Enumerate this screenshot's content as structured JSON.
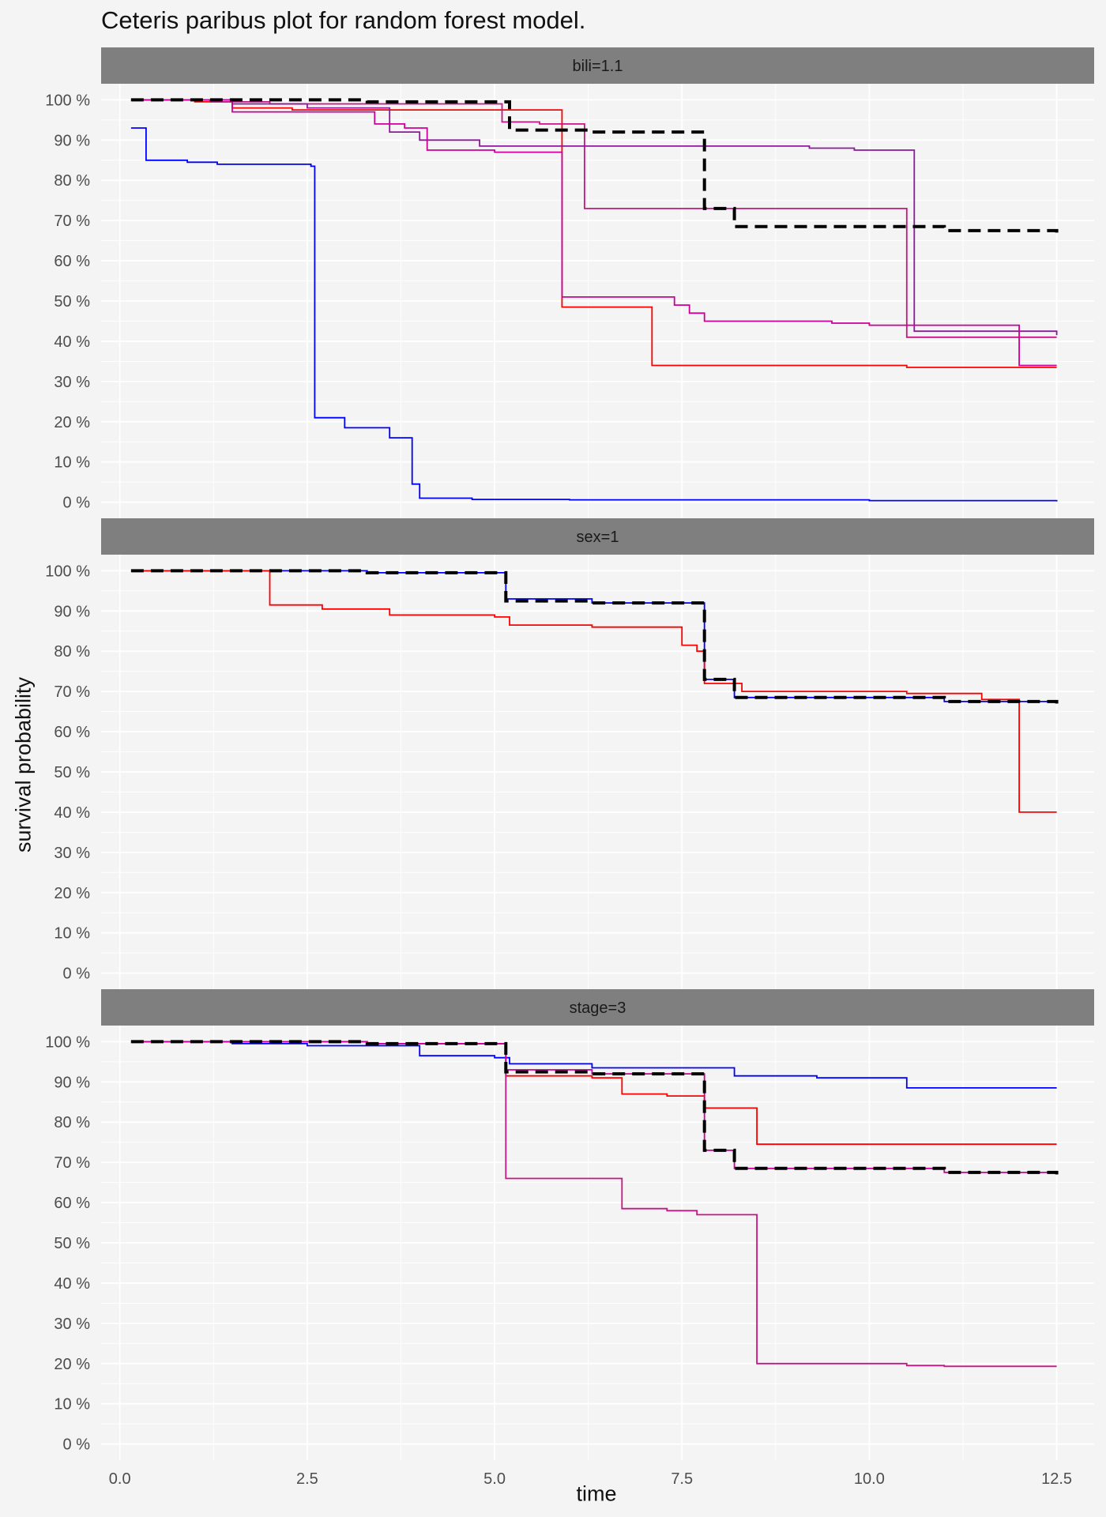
{
  "chart_data": {
    "type": "line",
    "title": "Ceteris paribus plot for random forest model.",
    "xlabel": "time",
    "ylabel": "survival probability",
    "xlim": [
      -0.25,
      13.0
    ],
    "ylim": [
      -4,
      104
    ],
    "x_ticks": [
      "0.0",
      "2.5",
      "5.0",
      "7.5",
      "10.0",
      "12.5"
    ],
    "x_tick_values": [
      0,
      2.5,
      5,
      7.5,
      10,
      12.5
    ],
    "y_ticks": [
      "0 %",
      "10 %",
      "20 %",
      "30 %",
      "40 %",
      "50 %",
      "60 %",
      "70 %",
      "80 %",
      "90 %",
      "100 %"
    ],
    "y_tick_values": [
      0,
      10,
      20,
      30,
      40,
      50,
      60,
      70,
      80,
      90,
      100
    ],
    "step": "post",
    "grid": true,
    "colors": {
      "background": "#f4f4f4",
      "strip": "#7f7f7f",
      "grid": "#ffffff",
      "observation": "#000000"
    },
    "panels": [
      {
        "strip_label": "bili=1.1",
        "series": [
          {
            "color": "#0000ff",
            "dashed": false,
            "x": [
              0.15,
              0.35,
              0.9,
              1.3,
              2.55,
              2.6,
              3.0,
              3.6,
              3.9,
              4.0,
              4.7,
              6.0,
              10.0,
              12.5
            ],
            "y": [
              93,
              85,
              84.5,
              84,
              83.5,
              21,
              18.5,
              16,
              4.5,
              1,
              0.7,
              0.6,
              0.4,
              0.2
            ]
          },
          {
            "color": "#ff0000",
            "dashed": false,
            "x": [
              0.15,
              1.0,
              1.5,
              2.3,
              5.0,
              5.9,
              7.1,
              10.5,
              12.5
            ],
            "y": [
              100,
              99.5,
              98,
              97.5,
              97.5,
              48.5,
              34,
              33.5,
              33.5
            ]
          },
          {
            "color": "#c71585",
            "dashed": false,
            "x": [
              0.15,
              1.2,
              2.0,
              5.1,
              5.6,
              6.2,
              10.5,
              12.5
            ],
            "y": [
              100,
              99.5,
              99,
              94.5,
              94,
              73,
              41,
              41
            ]
          },
          {
            "color": "#8b1a9a",
            "dashed": false,
            "x": [
              0.15,
              1.5,
              2.5,
              3.6,
              4.0,
              4.8,
              9.2,
              9.8,
              10.6,
              12.5
            ],
            "y": [
              100,
              99,
              98,
              92,
              90,
              88.5,
              88,
              87.5,
              42.5,
              41.5
            ]
          },
          {
            "color": "#cc0099",
            "dashed": false,
            "x": [
              0.15,
              1.5,
              3.4,
              3.8,
              4.1,
              5.0,
              5.9,
              7.4,
              7.6,
              7.8,
              9.5,
              10.0,
              12.0,
              12.5
            ],
            "y": [
              100,
              97,
              94,
              93,
              87.5,
              87,
              51,
              49,
              47,
              45,
              44.5,
              44,
              34,
              34
            ]
          },
          {
            "color": "#000000",
            "dashed": true,
            "x": [
              0.15,
              1.0,
              3.3,
              5.0,
              5.2,
              6.3,
              7.8,
              8.2,
              10.0,
              11.0,
              12.5
            ],
            "y": [
              100,
              100,
              99.5,
              99.5,
              92.5,
              92,
              73,
              68.5,
              68.5,
              67.5,
              67
            ]
          }
        ]
      },
      {
        "strip_label": "sex=1",
        "series": [
          {
            "color": "#0000ff",
            "dashed": false,
            "x": [
              0.15,
              3.3,
              5.0,
              5.15,
              6.3,
              7.8,
              8.2,
              10.0,
              11.0,
              12.5
            ],
            "y": [
              100,
              99.5,
              99.5,
              93,
              92,
              73,
              68.5,
              68.5,
              67.5,
              67
            ]
          },
          {
            "color": "#ff0000",
            "dashed": false,
            "x": [
              0.15,
              2.0,
              2.7,
              3.6,
              5.0,
              5.2,
              6.3,
              7.5,
              7.7,
              7.8,
              8.3,
              10.5,
              11.5,
              12.0,
              12.5
            ],
            "y": [
              100,
              91.5,
              90.5,
              89,
              88.5,
              86.5,
              86,
              81.5,
              80,
              72,
              70,
              69.5,
              68,
              40,
              40
            ]
          },
          {
            "color": "#000000",
            "dashed": true,
            "x": [
              0.15,
              3.3,
              5.0,
              5.15,
              6.3,
              7.8,
              8.2,
              10.0,
              11.0,
              12.5
            ],
            "y": [
              100,
              99.5,
              99.5,
              92.5,
              92,
              73,
              68.5,
              68.5,
              67.5,
              67
            ]
          }
        ]
      },
      {
        "strip_label": "stage=3",
        "series": [
          {
            "color": "#0000ff",
            "dashed": false,
            "x": [
              0.15,
              1.5,
              2.5,
              4.0,
              5.0,
              5.2,
              6.3,
              8.2,
              9.3,
              10.5,
              12.5
            ],
            "y": [
              100,
              99.5,
              99,
              96.5,
              96,
              94.5,
              93.5,
              91.5,
              91,
              88.5,
              88.5
            ]
          },
          {
            "color": "#ff0000",
            "dashed": false,
            "x": [
              0.15,
              3.3,
              5.15,
              6.3,
              6.7,
              7.3,
              7.8,
              8.5,
              10.0,
              12.5
            ],
            "y": [
              100,
              99.5,
              91.5,
              91,
              87,
              86.5,
              83.5,
              74.5,
              74.5,
              74.5
            ]
          },
          {
            "color": "#c71585",
            "dashed": false,
            "x": [
              0.15,
              3.3,
              5.15,
              6.7,
              7.3,
              7.7,
              8.5,
              10.5,
              11.0,
              12.5
            ],
            "y": [
              100,
              99.5,
              66,
              58.5,
              58,
              57,
              20,
              19.5,
              19.3,
              19.3
            ]
          },
          {
            "color": "#cc0099",
            "dashed": false,
            "x": [
              0.15,
              3.3,
              5.0,
              5.15,
              6.3,
              7.8,
              8.2,
              10.0,
              11.0,
              12.5
            ],
            "y": [
              100,
              99.5,
              99.5,
              93,
              92,
              73,
              68.5,
              68.5,
              67.5,
              67
            ]
          },
          {
            "color": "#000000",
            "dashed": true,
            "x": [
              0.15,
              3.3,
              5.0,
              5.15,
              6.3,
              7.8,
              8.2,
              10.0,
              11.0,
              12.5
            ],
            "y": [
              100,
              99.5,
              99.5,
              92.5,
              92,
              73,
              68.5,
              68.5,
              67.5,
              67
            ]
          }
        ]
      }
    ]
  }
}
